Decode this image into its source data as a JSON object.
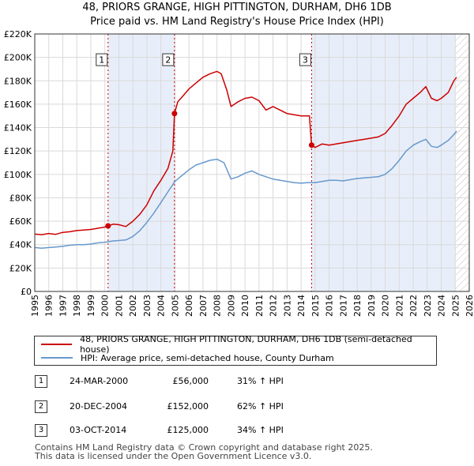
{
  "title_line1": "48, PRIORS GRANGE, HIGH PITTINGTON, DURHAM, DH6 1DB",
  "title_line2": "Price paid vs. HM Land Registry's House Price Index (HPI)",
  "chart_data": {
    "type": "line",
    "xlim": [
      1995,
      2026
    ],
    "ylim": [
      0,
      220000
    ],
    "y_ticks": [
      0,
      20000,
      40000,
      60000,
      80000,
      100000,
      120000,
      140000,
      160000,
      180000,
      200000,
      220000
    ],
    "y_tick_labels": [
      "£0",
      "£20K",
      "£40K",
      "£60K",
      "£80K",
      "£100K",
      "£120K",
      "£140K",
      "£160K",
      "£180K",
      "£200K",
      "£220K"
    ],
    "x_ticks": [
      1995,
      1996,
      1997,
      1998,
      1999,
      2000,
      2001,
      2002,
      2003,
      2004,
      2005,
      2006,
      2007,
      2008,
      2009,
      2010,
      2011,
      2012,
      2013,
      2014,
      2015,
      2016,
      2017,
      2018,
      2019,
      2020,
      2021,
      2022,
      2023,
      2024,
      2025,
      2026
    ],
    "x_tick_labels": [
      "1995",
      "1996",
      "1997",
      "1998",
      "1999",
      "2000",
      "2001",
      "2002",
      "2003",
      "2004",
      "2005",
      "2006",
      "2007",
      "2008",
      "2009",
      "2010",
      "2011",
      "2012",
      "2013",
      "2014",
      "2015",
      "2016",
      "2017",
      "2018",
      "2019",
      "2020",
      "2021",
      "2022",
      "2023",
      "2024",
      "2025",
      "2026"
    ],
    "grid": true,
    "shaded_periods": [
      [
        2000.23,
        2004.97
      ],
      [
        2014.75,
        2025.0
      ]
    ],
    "hatched_after": 2025.0,
    "series": [
      {
        "name": "48, PRIORS GRANGE, HIGH PITTINGTON, DURHAM, DH6 1DB (semi-detached house)",
        "color": "#cc0000",
        "points": [
          [
            1995.0,
            49000
          ],
          [
            1995.5,
            48500
          ],
          [
            1996.0,
            49500
          ],
          [
            1996.5,
            48800
          ],
          [
            1997.0,
            50500
          ],
          [
            1997.5,
            51000
          ],
          [
            1998.0,
            52000
          ],
          [
            1998.5,
            52500
          ],
          [
            1999.0,
            53000
          ],
          [
            1999.5,
            54000
          ],
          [
            2000.0,
            55000
          ],
          [
            2000.23,
            56000
          ],
          [
            2000.6,
            57500
          ],
          [
            2001.0,
            57000
          ],
          [
            2001.5,
            55500
          ],
          [
            2002.0,
            60000
          ],
          [
            2002.5,
            66000
          ],
          [
            2003.0,
            74000
          ],
          [
            2003.5,
            86000
          ],
          [
            2004.0,
            95000
          ],
          [
            2004.5,
            105000
          ],
          [
            2004.85,
            120000
          ],
          [
            2004.97,
            152000
          ],
          [
            2005.2,
            162000
          ],
          [
            2005.5,
            166000
          ],
          [
            2006.0,
            173000
          ],
          [
            2006.5,
            178000
          ],
          [
            2007.0,
            183000
          ],
          [
            2007.5,
            186000
          ],
          [
            2008.0,
            188000
          ],
          [
            2008.3,
            186000
          ],
          [
            2008.7,
            172000
          ],
          [
            2009.0,
            158000
          ],
          [
            2009.5,
            162000
          ],
          [
            2010.0,
            165000
          ],
          [
            2010.5,
            166000
          ],
          [
            2011.0,
            163000
          ],
          [
            2011.5,
            155000
          ],
          [
            2012.0,
            158000
          ],
          [
            2012.5,
            155000
          ],
          [
            2013.0,
            152000
          ],
          [
            2013.5,
            151000
          ],
          [
            2014.0,
            150000
          ],
          [
            2014.6,
            150000
          ],
          [
            2014.75,
            125000
          ],
          [
            2015.0,
            123000
          ],
          [
            2015.5,
            126000
          ],
          [
            2016.0,
            125000
          ],
          [
            2016.5,
            126000
          ],
          [
            2017.0,
            127000
          ],
          [
            2017.5,
            128000
          ],
          [
            2018.0,
            129000
          ],
          [
            2018.5,
            130000
          ],
          [
            2019.0,
            131000
          ],
          [
            2019.5,
            132000
          ],
          [
            2020.0,
            135000
          ],
          [
            2020.5,
            142000
          ],
          [
            2021.0,
            150000
          ],
          [
            2021.5,
            160000
          ],
          [
            2022.0,
            165000
          ],
          [
            2022.5,
            170000
          ],
          [
            2022.9,
            175000
          ],
          [
            2023.3,
            165000
          ],
          [
            2023.7,
            163000
          ],
          [
            2024.0,
            165000
          ],
          [
            2024.5,
            170000
          ],
          [
            2024.9,
            180000
          ],
          [
            2025.1,
            183000
          ]
        ]
      },
      {
        "name": "HPI: Average price, semi-detached house, County Durham",
        "color": "#6699cc",
        "points": [
          [
            1995.0,
            37500
          ],
          [
            1995.5,
            37000
          ],
          [
            1996.0,
            37500
          ],
          [
            1996.5,
            38000
          ],
          [
            1997.0,
            38500
          ],
          [
            1997.5,
            39500
          ],
          [
            1998.0,
            40000
          ],
          [
            1998.5,
            40000
          ],
          [
            1999.0,
            40500
          ],
          [
            1999.5,
            41500
          ],
          [
            2000.0,
            42000
          ],
          [
            2000.5,
            43000
          ],
          [
            2001.0,
            43500
          ],
          [
            2001.5,
            44000
          ],
          [
            2002.0,
            47000
          ],
          [
            2002.5,
            52000
          ],
          [
            2003.0,
            59000
          ],
          [
            2003.5,
            67000
          ],
          [
            2004.0,
            76000
          ],
          [
            2004.5,
            85000
          ],
          [
            2005.0,
            94000
          ],
          [
            2005.5,
            99000
          ],
          [
            2006.0,
            104000
          ],
          [
            2006.5,
            108000
          ],
          [
            2007.0,
            110000
          ],
          [
            2007.5,
            112000
          ],
          [
            2008.0,
            113000
          ],
          [
            2008.5,
            110000
          ],
          [
            2009.0,
            96000
          ],
          [
            2009.5,
            98000
          ],
          [
            2010.0,
            101000
          ],
          [
            2010.5,
            103000
          ],
          [
            2011.0,
            100000
          ],
          [
            2011.5,
            98000
          ],
          [
            2012.0,
            96000
          ],
          [
            2012.5,
            95000
          ],
          [
            2013.0,
            94000
          ],
          [
            2013.5,
            93000
          ],
          [
            2014.0,
            92500
          ],
          [
            2014.5,
            93000
          ],
          [
            2015.0,
            93000
          ],
          [
            2015.5,
            94000
          ],
          [
            2016.0,
            95000
          ],
          [
            2016.5,
            95000
          ],
          [
            2017.0,
            94500
          ],
          [
            2017.5,
            95500
          ],
          [
            2018.0,
            96500
          ],
          [
            2018.5,
            97000
          ],
          [
            2019.0,
            97500
          ],
          [
            2019.5,
            98000
          ],
          [
            2020.0,
            100000
          ],
          [
            2020.5,
            105000
          ],
          [
            2021.0,
            112000
          ],
          [
            2021.5,
            120000
          ],
          [
            2022.0,
            125000
          ],
          [
            2022.5,
            128000
          ],
          [
            2022.9,
            130000
          ],
          [
            2023.3,
            124000
          ],
          [
            2023.7,
            123000
          ],
          [
            2024.0,
            125000
          ],
          [
            2024.5,
            129000
          ],
          [
            2024.9,
            134000
          ],
          [
            2025.1,
            137000
          ]
        ]
      }
    ],
    "markers": [
      {
        "label": "1",
        "x": 2000.23,
        "y": 56000
      },
      {
        "label": "2",
        "x": 2004.97,
        "y": 152000
      },
      {
        "label": "3",
        "x": 2014.75,
        "y": 125000
      }
    ],
    "marker_label_y": 197000
  },
  "legend": {
    "red_label": "48, PRIORS GRANGE, HIGH PITTINGTON, DURHAM, DH6 1DB (semi-detached house)",
    "blue_label": "HPI: Average price, semi-detached house, County Durham"
  },
  "transactions": [
    {
      "num": "1",
      "date": "24-MAR-2000",
      "price": "£56,000",
      "hpi": "31% ↑ HPI"
    },
    {
      "num": "2",
      "date": "20-DEC-2004",
      "price": "£152,000",
      "hpi": "62% ↑ HPI"
    },
    {
      "num": "3",
      "date": "03-OCT-2014",
      "price": "£125,000",
      "hpi": "34% ↑ HPI"
    }
  ],
  "footer_line1": "Contains HM Land Registry data © Crown copyright and database right 2025.",
  "footer_line2": "This data is licensed under the Open Government Licence v3.0."
}
